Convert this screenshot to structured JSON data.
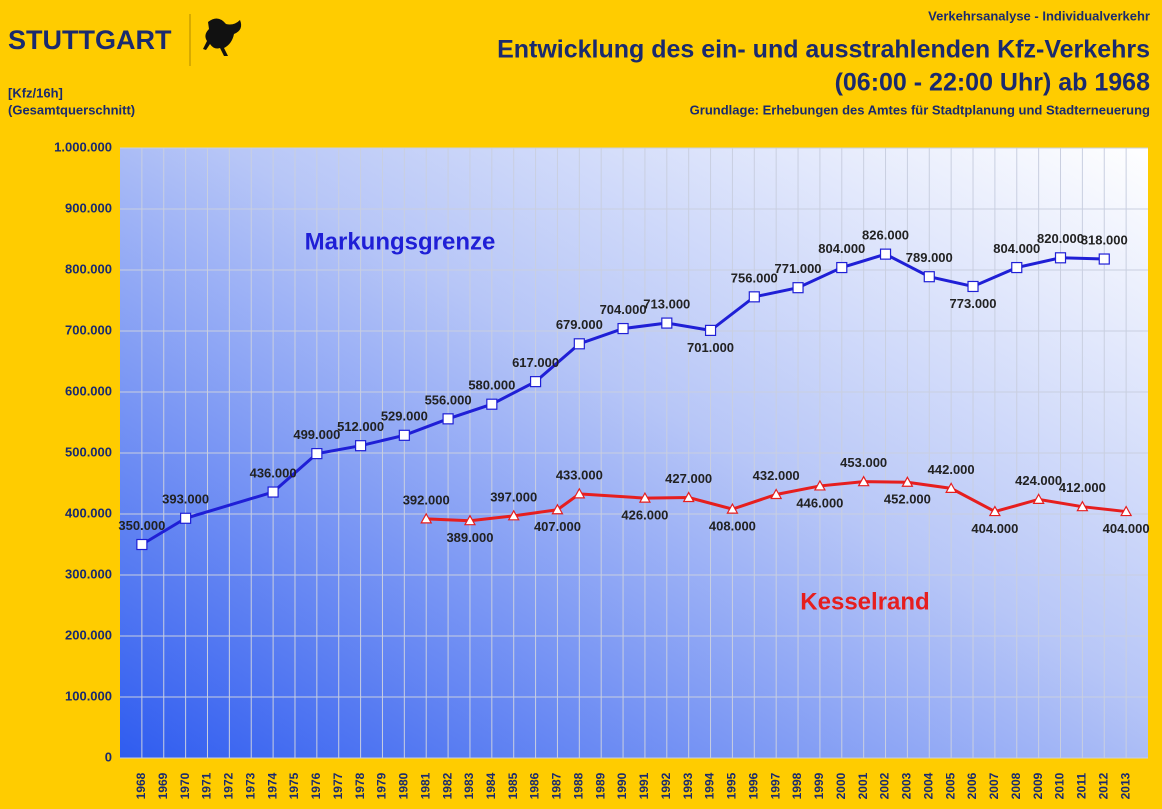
{
  "header": {
    "logo": "STUTTGART",
    "unit": "[Kfz/16h]",
    "scope": "(Gesamtquerschnitt)"
  },
  "chart_data": {
    "type": "line",
    "overline": "Verkehrsanalyse  -  Individualverkehr",
    "title": "Entwicklung des ein- und ausstrahlenden Kfz-Verkehrs",
    "subtitle": "(06:00 - 22:00 Uhr) ab 1968",
    "source": "Grundlage: Erhebungen des Amtes für Stadtplanung und Stadterneuerung",
    "xlim": [
      1967,
      2014
    ],
    "xticks": [
      1968,
      1969,
      1970,
      1971,
      1972,
      1973,
      1974,
      1975,
      1976,
      1977,
      1978,
      1979,
      1980,
      1981,
      1982,
      1983,
      1984,
      1985,
      1986,
      1987,
      1988,
      1989,
      1990,
      1991,
      1992,
      1993,
      1994,
      1995,
      1996,
      1997,
      1998,
      1999,
      2000,
      2001,
      2002,
      2003,
      2004,
      2005,
      2006,
      2007,
      2008,
      2009,
      2010,
      2011,
      2012,
      2013
    ],
    "ylim": [
      0,
      1000000
    ],
    "yticks": [
      0,
      {
        "value": 100000,
        "label": "100.000"
      },
      {
        "value": 200000,
        "label": "200.000"
      },
      {
        "value": 300000,
        "label": "300.000"
      },
      {
        "value": 400000,
        "label": "400.000"
      },
      {
        "value": 500000,
        "label": "500.000"
      },
      {
        "value": 600000,
        "label": "600.000"
      },
      {
        "value": 700000,
        "label": "700.000"
      },
      {
        "value": 800000,
        "label": "800.000"
      },
      {
        "value": 900000,
        "label": "900.000"
      },
      {
        "value": 1000000,
        "label": "1.000.000"
      }
    ],
    "grid": true,
    "series": [
      {
        "name": "Markungsgrenze",
        "color": "#1f1fd6",
        "marker": "square",
        "x": [
          1968,
          1970,
          1974,
          1976,
          1978,
          1980,
          1982,
          1984,
          1986,
          1988,
          1990,
          1992,
          1994,
          1996,
          1998,
          2000,
          2002,
          2004,
          2006,
          2008,
          2010,
          2012
        ],
        "values": [
          350000,
          393000,
          436000,
          499000,
          512000,
          529000,
          556000,
          580000,
          617000,
          679000,
          704000,
          713000,
          701000,
          756000,
          771000,
          804000,
          826000,
          789000,
          773000,
          804000,
          820000,
          818000
        ],
        "value_labels": [
          "350.000",
          "393.000",
          "436.000",
          "499.000",
          "512.000",
          "529.000",
          "556.000",
          "580.000",
          "617.000",
          "679.000",
          "704.000",
          "713.000",
          "701.000",
          "756.000",
          "771.000",
          "804.000",
          "826.000",
          "789.000",
          "773.000",
          "804.000",
          "820.000",
          "818.000"
        ]
      },
      {
        "name": "Kesselrand",
        "color": "#e61e1e",
        "marker": "triangle",
        "x": [
          1981,
          1983,
          1985,
          1987,
          1988,
          1991,
          1993,
          1995,
          1997,
          1999,
          2001,
          2003,
          2005,
          2007,
          2009,
          2011,
          2013
        ],
        "values": [
          392000,
          389000,
          397000,
          407000,
          433000,
          426000,
          427000,
          408000,
          432000,
          446000,
          453000,
          452000,
          442000,
          404000,
          424000,
          412000,
          404000
        ],
        "value_labels": [
          "392.000",
          "389.000",
          "397.000",
          "407.000",
          "433.000",
          "426.000",
          "427.000",
          "408.000",
          "432.000",
          "446.000",
          "453.000",
          "452.000",
          "442.000",
          "404.000",
          "424.000",
          "412.000",
          "404.000"
        ]
      }
    ]
  }
}
